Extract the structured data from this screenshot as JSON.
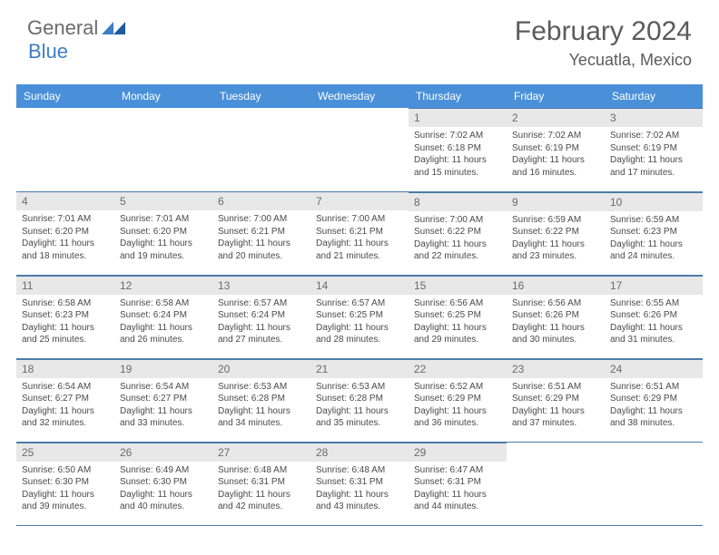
{
  "logo": {
    "general": "General",
    "blue": "Blue"
  },
  "title": {
    "month": "February 2024",
    "location": "Yecuatla, Mexico"
  },
  "colors": {
    "header_bg": "#4a90d9",
    "header_text": "#ffffff",
    "daynum_bg": "#e8e8e8",
    "daynum_text": "#6b6b6b",
    "border": "#4a7ba8",
    "body_text": "#4a4a4a",
    "logo_gray": "#6b6b6b",
    "logo_blue": "#3b7fc4"
  },
  "weekdays": [
    "Sunday",
    "Monday",
    "Tuesday",
    "Wednesday",
    "Thursday",
    "Friday",
    "Saturday"
  ],
  "weeks": [
    [
      null,
      null,
      null,
      null,
      {
        "n": "1",
        "sr": "7:02 AM",
        "ss": "6:18 PM",
        "dl": "11 hours and 15 minutes."
      },
      {
        "n": "2",
        "sr": "7:02 AM",
        "ss": "6:19 PM",
        "dl": "11 hours and 16 minutes."
      },
      {
        "n": "3",
        "sr": "7:02 AM",
        "ss": "6:19 PM",
        "dl": "11 hours and 17 minutes."
      }
    ],
    [
      {
        "n": "4",
        "sr": "7:01 AM",
        "ss": "6:20 PM",
        "dl": "11 hours and 18 minutes."
      },
      {
        "n": "5",
        "sr": "7:01 AM",
        "ss": "6:20 PM",
        "dl": "11 hours and 19 minutes."
      },
      {
        "n": "6",
        "sr": "7:00 AM",
        "ss": "6:21 PM",
        "dl": "11 hours and 20 minutes."
      },
      {
        "n": "7",
        "sr": "7:00 AM",
        "ss": "6:21 PM",
        "dl": "11 hours and 21 minutes."
      },
      {
        "n": "8",
        "sr": "7:00 AM",
        "ss": "6:22 PM",
        "dl": "11 hours and 22 minutes."
      },
      {
        "n": "9",
        "sr": "6:59 AM",
        "ss": "6:22 PM",
        "dl": "11 hours and 23 minutes."
      },
      {
        "n": "10",
        "sr": "6:59 AM",
        "ss": "6:23 PM",
        "dl": "11 hours and 24 minutes."
      }
    ],
    [
      {
        "n": "11",
        "sr": "6:58 AM",
        "ss": "6:23 PM",
        "dl": "11 hours and 25 minutes."
      },
      {
        "n": "12",
        "sr": "6:58 AM",
        "ss": "6:24 PM",
        "dl": "11 hours and 26 minutes."
      },
      {
        "n": "13",
        "sr": "6:57 AM",
        "ss": "6:24 PM",
        "dl": "11 hours and 27 minutes."
      },
      {
        "n": "14",
        "sr": "6:57 AM",
        "ss": "6:25 PM",
        "dl": "11 hours and 28 minutes."
      },
      {
        "n": "15",
        "sr": "6:56 AM",
        "ss": "6:25 PM",
        "dl": "11 hours and 29 minutes."
      },
      {
        "n": "16",
        "sr": "6:56 AM",
        "ss": "6:26 PM",
        "dl": "11 hours and 30 minutes."
      },
      {
        "n": "17",
        "sr": "6:55 AM",
        "ss": "6:26 PM",
        "dl": "11 hours and 31 minutes."
      }
    ],
    [
      {
        "n": "18",
        "sr": "6:54 AM",
        "ss": "6:27 PM",
        "dl": "11 hours and 32 minutes."
      },
      {
        "n": "19",
        "sr": "6:54 AM",
        "ss": "6:27 PM",
        "dl": "11 hours and 33 minutes."
      },
      {
        "n": "20",
        "sr": "6:53 AM",
        "ss": "6:28 PM",
        "dl": "11 hours and 34 minutes."
      },
      {
        "n": "21",
        "sr": "6:53 AM",
        "ss": "6:28 PM",
        "dl": "11 hours and 35 minutes."
      },
      {
        "n": "22",
        "sr": "6:52 AM",
        "ss": "6:29 PM",
        "dl": "11 hours and 36 minutes."
      },
      {
        "n": "23",
        "sr": "6:51 AM",
        "ss": "6:29 PM",
        "dl": "11 hours and 37 minutes."
      },
      {
        "n": "24",
        "sr": "6:51 AM",
        "ss": "6:29 PM",
        "dl": "11 hours and 38 minutes."
      }
    ],
    [
      {
        "n": "25",
        "sr": "6:50 AM",
        "ss": "6:30 PM",
        "dl": "11 hours and 39 minutes."
      },
      {
        "n": "26",
        "sr": "6:49 AM",
        "ss": "6:30 PM",
        "dl": "11 hours and 40 minutes."
      },
      {
        "n": "27",
        "sr": "6:48 AM",
        "ss": "6:31 PM",
        "dl": "11 hours and 42 minutes."
      },
      {
        "n": "28",
        "sr": "6:48 AM",
        "ss": "6:31 PM",
        "dl": "11 hours and 43 minutes."
      },
      {
        "n": "29",
        "sr": "6:47 AM",
        "ss": "6:31 PM",
        "dl": "11 hours and 44 minutes."
      },
      null,
      null
    ]
  ],
  "labels": {
    "sunrise": "Sunrise:",
    "sunset": "Sunset:",
    "daylight": "Daylight:"
  }
}
